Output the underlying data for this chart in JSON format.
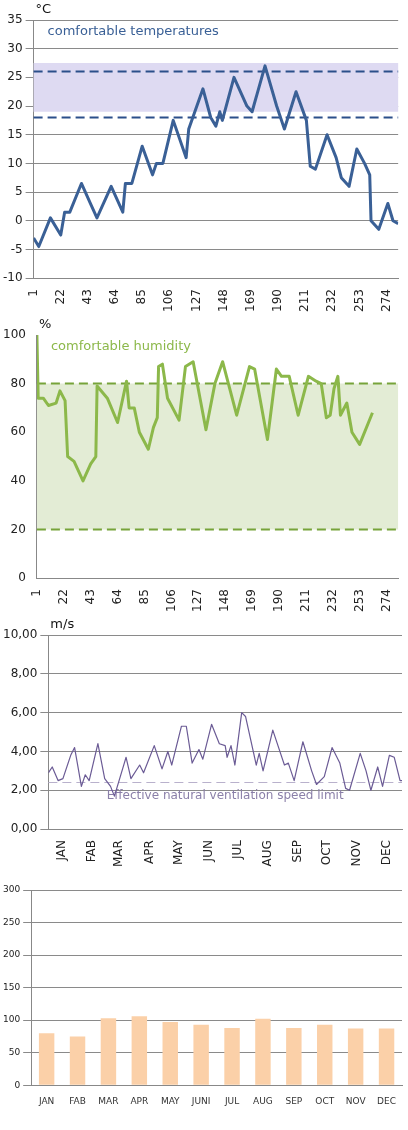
{
  "chart_data": [
    {
      "type": "line",
      "ylabel": "°C",
      "xlim": [
        1,
        283
      ],
      "xticks": [
        1,
        22,
        43,
        64,
        85,
        106,
        127,
        148,
        169,
        190,
        211,
        232,
        253,
        274
      ],
      "ylim": [
        -10,
        35
      ],
      "yticks": [
        -10,
        -5,
        0,
        5,
        10,
        15,
        20,
        25,
        30,
        35
      ],
      "grid": "y",
      "legend": false,
      "marker": "none",
      "line_style": "solid",
      "series": [
        {
          "color": "#3a6096",
          "x": [
            1,
            5,
            14,
            22,
            25,
            29,
            38,
            45,
            50,
            61,
            70,
            72,
            77,
            85,
            93,
            96,
            101,
            109,
            119,
            121,
            132,
            138,
            142,
            145,
            147,
            156,
            166,
            170,
            180,
            189,
            195,
            204,
            212,
            215,
            219,
            228,
            235,
            239,
            245,
            251,
            257,
            261,
            262,
            268,
            275,
            279,
            283
          ],
          "values": [
            -3,
            -4.5,
            0.5,
            -2.5,
            1.5,
            1.5,
            6.5,
            3,
            0.5,
            6,
            1.5,
            6.5,
            6.5,
            13,
            8,
            10,
            10,
            17.5,
            11,
            16,
            23,
            18,
            16.5,
            19,
            17.5,
            25,
            20,
            19,
            27,
            20,
            16,
            22.5,
            17.5,
            9.5,
            9,
            15,
            11,
            7.5,
            6,
            12.5,
            10,
            8,
            0,
            -1.5,
            3,
            0,
            -0.5
          ]
        }
      ],
      "bands": [
        {
          "axis": "y",
          "from": 19,
          "to": 27.5,
          "color": "#dedaf2"
        }
      ],
      "ref_lines": [
        {
          "axis": "y",
          "value": 26,
          "color": "#2b4f8a",
          "line_style": "dashed"
        },
        {
          "axis": "y",
          "value": 18,
          "color": "#2b4f8a",
          "line_style": "dashed"
        }
      ],
      "annotations": [
        "comfortable temperatures"
      ]
    },
    {
      "type": "line",
      "ylabel": "%",
      "xlim": [
        1,
        283
      ],
      "xticks": [
        1,
        22,
        43,
        64,
        85,
        106,
        127,
        148,
        169,
        190,
        211,
        232,
        253,
        274
      ],
      "ylim": [
        0,
        100
      ],
      "yticks": [
        0,
        20,
        40,
        60,
        80,
        100
      ],
      "grid": false,
      "legend": false,
      "marker": "none",
      "line_style": "solid",
      "series": [
        {
          "color": "#8cb84a",
          "x": [
            1,
            2,
            6,
            10,
            16,
            19,
            23,
            25,
            30,
            37,
            43,
            47,
            48,
            56,
            64,
            71,
            73,
            77,
            81,
            88,
            92,
            95,
            96,
            99,
            103,
            112,
            117,
            123,
            133,
            140,
            146,
            157,
            167,
            171,
            181,
            188,
            192,
            198,
            205,
            213,
            219,
            223,
            227,
            230,
            233,
            236,
            238,
            243,
            247,
            253,
            263
          ],
          "values": [
            100,
            74,
            74,
            71,
            72,
            77,
            73,
            50,
            48,
            40,
            47,
            50,
            79,
            74,
            64,
            81,
            70,
            70,
            60,
            53,
            62,
            66,
            87,
            88,
            74,
            65,
            87,
            89,
            61,
            80,
            89,
            67,
            87,
            86,
            57,
            86,
            83,
            83,
            67,
            83,
            81,
            80,
            66,
            67,
            78,
            83,
            67,
            72,
            60,
            55,
            68
          ]
        }
      ],
      "bands": [
        {
          "axis": "y",
          "from": 20,
          "to": 80,
          "color": "#e3ecd5"
        }
      ],
      "ref_lines": [
        {
          "axis": "y",
          "value": 80,
          "color": "#77a33a",
          "line_style": "dashed"
        },
        {
          "axis": "y",
          "value": 20,
          "color": "#77a33a",
          "line_style": "dashed"
        }
      ],
      "annotations": [
        "comfortable humidity"
      ]
    },
    {
      "type": "line",
      "ylabel": "m/s",
      "xlim": [
        "--01-01",
        "--12-31"
      ],
      "xticks": [
        {
          "value": "--01-15",
          "label": "JAN"
        },
        {
          "value": "--02-15",
          "label": "FAB"
        },
        {
          "value": "--03-15",
          "label": "MAR"
        },
        {
          "value": "--04-15",
          "label": "APR"
        },
        {
          "value": "--05-15",
          "label": "MAY"
        },
        {
          "value": "--06-15",
          "label": "JUN"
        },
        {
          "value": "--07-15",
          "label": "JUL"
        },
        {
          "value": "--08-15",
          "label": "AUG"
        },
        {
          "value": "--09-15",
          "label": "SEP"
        },
        {
          "value": "--10-15",
          "label": "OCT"
        },
        {
          "value": "--11-15",
          "label": "NOV"
        },
        {
          "value": "--12-15",
          "label": "DEC"
        }
      ],
      "ylim": [
        0,
        10
      ],
      "yticks": [
        {
          "value": 0,
          "label": "0,00"
        },
        {
          "value": 2,
          "label": "2,00"
        },
        {
          "value": 4,
          "label": "4,00"
        },
        {
          "value": 6,
          "label": "6,00"
        },
        {
          "value": 8,
          "label": "8,00"
        },
        {
          "value": 10,
          "label": "10,00"
        }
      ],
      "grid": "y",
      "legend": false,
      "marker": "none",
      "line_style": "solid",
      "series": [
        {
          "color": "#6b5b95",
          "x": [
            "--01-01",
            "--01-05",
            "--01-11",
            "--01-16",
            "--01-24",
            "--01-28",
            "--02-04",
            "--02-08",
            "--02-12",
            "--02-21",
            "--02-28",
            "--03-06",
            "--03-10",
            "--03-22",
            "--03-27",
            "--04-05",
            "--04-09",
            "--04-20",
            "--04-28",
            "--05-04",
            "--05-08",
            "--05-18",
            "--05-23",
            "--05-29",
            "--06-05",
            "--06-09",
            "--06-18",
            "--06-26",
            "--07-02",
            "--07-04",
            "--07-08",
            "--07-12",
            "--07-19",
            "--07-23",
            "--08-03",
            "--08-06",
            "--08-10",
            "--08-20",
            "--09-01",
            "--09-05",
            "--09-11",
            "--09-20",
            "--09-29",
            "--10-04",
            "--10-12",
            "--10-20",
            "--10-28",
            "--11-03",
            "--11-07",
            "--11-18",
            "--11-24",
            "--11-29",
            "--12-06",
            "--12-11",
            "--12-18",
            "--12-23",
            "--12-29",
            "--12-31"
          ],
          "values": [
            2.9,
            3.2,
            2.5,
            2.6,
            3.8,
            4.2,
            2.2,
            2.8,
            2.5,
            4.4,
            2.6,
            2.2,
            1.7,
            3.7,
            2.6,
            3.3,
            2.9,
            4.3,
            3.1,
            4,
            3.3,
            5.3,
            5.3,
            3.4,
            4.1,
            3.6,
            5.4,
            4.4,
            4.3,
            3.7,
            4.3,
            3.3,
            6,
            5.8,
            3.3,
            3.9,
            3,
            5.1,
            3.3,
            3.4,
            2.5,
            4.5,
            3,
            2.3,
            2.7,
            4.2,
            3.4,
            2.1,
            2,
            3.9,
            3,
            2,
            3.2,
            2.2,
            3.8,
            3.7,
            2.5,
            2.5
          ]
        }
      ],
      "ref_lines": [
        {
          "axis": "y",
          "value": 2.4,
          "color": "#b9b1cc",
          "line_style": "dashed",
          "label": "Effective natural ventilation speed limit"
        }
      ]
    },
    {
      "type": "bar",
      "categories": [
        "JAN",
        "FAB",
        "MAR",
        "APR",
        "MAY",
        "JUNI",
        "JUL",
        "AUG",
        "SEP",
        "OCT",
        "NOV",
        "DEC"
      ],
      "values": [
        80,
        75,
        103,
        106,
        97,
        93,
        88,
        102,
        88,
        93,
        87,
        87
      ],
      "color": "#fbd0a8",
      "ylim": [
        0,
        300
      ],
      "yticks": [
        0,
        50,
        100,
        150,
        200,
        250,
        300
      ],
      "grid": "y",
      "legend": false
    }
  ]
}
